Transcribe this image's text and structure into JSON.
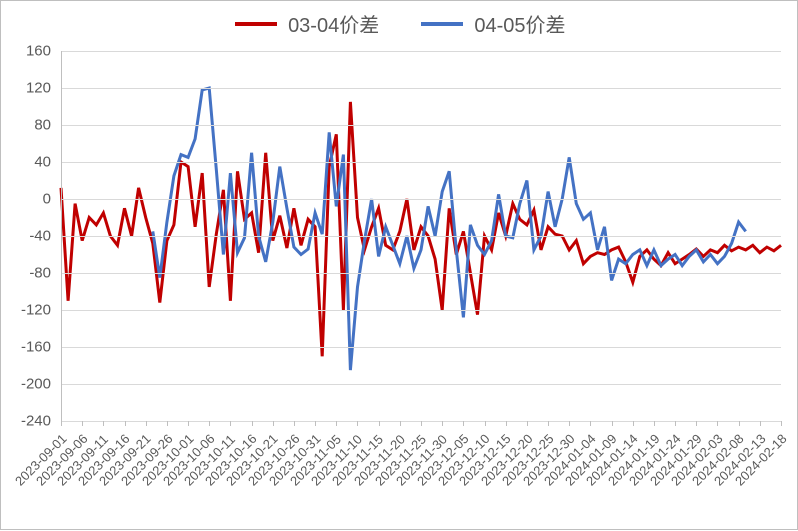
{
  "chart": {
    "type": "line",
    "background_color": "#ffffff",
    "border_color": "#bfbfbf",
    "grid_color": "#d9d9d9",
    "axis_color": "#bfbfbf",
    "text_color": "#595959",
    "label_fontsize": 15,
    "xlabel_fontsize": 13,
    "legend_fontsize": 20,
    "legend_position": "top-center",
    "line_width": 3,
    "ylim": [
      -240,
      160
    ],
    "ytick_step": 40,
    "yticks": [
      -240,
      -200,
      -160,
      -120,
      -80,
      -40,
      0,
      40,
      80,
      120,
      160
    ],
    "x_categories": [
      "2023-09-01",
      "2023-09-06",
      "2023-09-11",
      "2023-09-16",
      "2023-09-21",
      "2023-09-26",
      "2023-10-01",
      "2023-10-06",
      "2023-10-11",
      "2023-10-16",
      "2023-10-21",
      "2023-10-26",
      "2023-10-31",
      "2023-11-05",
      "2023-11-10",
      "2023-11-15",
      "2023-11-20",
      "2023-11-25",
      "2023-11-30",
      "2023-12-05",
      "2023-12-10",
      "2023-12-15",
      "2023-12-20",
      "2023-12-25",
      "2023-12-30",
      "2024-01-04",
      "2024-01-09",
      "2024-01-14",
      "2024-01-19",
      "2024-01-24",
      "2024-01-29",
      "2024-02-03",
      "2024-02-08",
      "2024-02-13",
      "2024-02-18"
    ],
    "x_label_rotation": -45,
    "series": [
      {
        "name": "03-04价差",
        "color": "#c00000",
        "points_per_label": 3,
        "values": [
          12,
          -110,
          -5,
          -45,
          -20,
          -28,
          -15,
          -40,
          -50,
          -10,
          -40,
          12,
          -20,
          -48,
          -112,
          -45,
          -28,
          40,
          35,
          -30,
          28,
          -95,
          -38,
          10,
          -110,
          30,
          -22,
          -15,
          -58,
          50,
          -45,
          -18,
          -53,
          -10,
          -50,
          -22,
          -30,
          -170,
          35,
          70,
          -120,
          105,
          -20,
          -55,
          -30,
          -10,
          -50,
          -55,
          -35,
          0,
          -55,
          -30,
          -40,
          -65,
          -120,
          -10,
          -60,
          -35,
          -80,
          -125,
          -40,
          -55,
          -15,
          -40,
          -5,
          -22,
          -28,
          -12,
          -55,
          -30,
          -38,
          -40,
          -55,
          -45,
          -70,
          -62,
          -58,
          -60,
          -55,
          -52,
          -68,
          -90,
          -62,
          -55,
          -65,
          -72,
          -58,
          -70,
          -65,
          -60,
          -54,
          -62,
          -55,
          -58,
          -50,
          -56,
          -52,
          -55,
          -50,
          -58,
          -52,
          -56,
          -50
        ]
      },
      {
        "name": "04-05价差",
        "color": "#4472c4",
        "points_per_label": 3,
        "values": [
          null,
          null,
          null,
          null,
          null,
          null,
          null,
          null,
          null,
          null,
          null,
          null,
          null,
          -35,
          -85,
          -25,
          25,
          48,
          45,
          65,
          118,
          120,
          32,
          -60,
          28,
          -58,
          -42,
          50,
          -40,
          -68,
          -25,
          35,
          -10,
          -52,
          -60,
          -54,
          -15,
          -38,
          72,
          -8,
          48,
          -185,
          -95,
          -45,
          0,
          -62,
          -30,
          -50,
          -70,
          -40,
          -75,
          -55,
          -8,
          -40,
          8,
          30,
          -55,
          -128,
          -28,
          -50,
          -60,
          -45,
          5,
          -40,
          -42,
          -5,
          20,
          -55,
          -40,
          8,
          -30,
          0,
          45,
          -5,
          -22,
          -15,
          -55,
          -30,
          -88,
          -65,
          -70,
          -60,
          -55,
          -72,
          -55,
          -72,
          -65,
          -60,
          -72,
          -62,
          -55,
          -68,
          -60,
          -70,
          -62,
          -48,
          -25,
          -35,
          null,
          null,
          null,
          null,
          -48
        ]
      }
    ]
  }
}
